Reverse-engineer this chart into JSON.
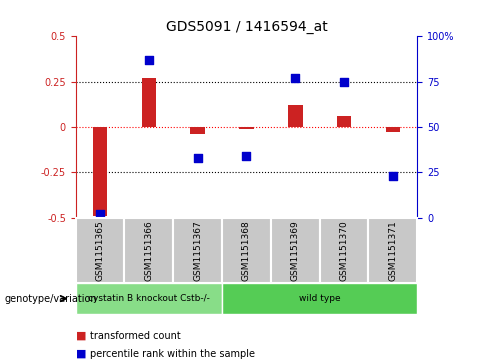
{
  "title": "GDS5091 / 1416594_at",
  "samples": [
    "GSM1151365",
    "GSM1151366",
    "GSM1151367",
    "GSM1151368",
    "GSM1151369",
    "GSM1151370",
    "GSM1151371"
  ],
  "red_values": [
    -0.49,
    0.27,
    -0.04,
    -0.01,
    0.12,
    0.06,
    -0.03
  ],
  "blue_percentiles": [
    2,
    87,
    33,
    34,
    77,
    75,
    23
  ],
  "ylim_left": [
    -0.5,
    0.5
  ],
  "ylim_right": [
    0,
    100
  ],
  "groups": [
    {
      "label": "cystatin B knockout Cstb-/-",
      "indices": [
        0,
        1,
        2
      ],
      "color": "#88DD88"
    },
    {
      "label": "wild type",
      "indices": [
        3,
        4,
        5,
        6
      ],
      "color": "#55CC55"
    }
  ],
  "red_color": "#CC2222",
  "blue_color": "#0000CC",
  "legend_label_red": "transformed count",
  "legend_label_blue": "percentile rank within the sample",
  "bar_width": 0.3,
  "dot_size": 35,
  "sample_box_color": "#C8C8C8",
  "left_yticks": [
    -0.5,
    -0.25,
    0,
    0.25,
    0.5
  ],
  "left_yticklabels": [
    "-0.5",
    "-0.25",
    "0",
    "0.25",
    "0.5"
  ],
  "right_yticks": [
    0,
    25,
    50,
    75,
    100
  ],
  "right_yticklabels": [
    "0",
    "25",
    "50",
    "75",
    "100%"
  ]
}
